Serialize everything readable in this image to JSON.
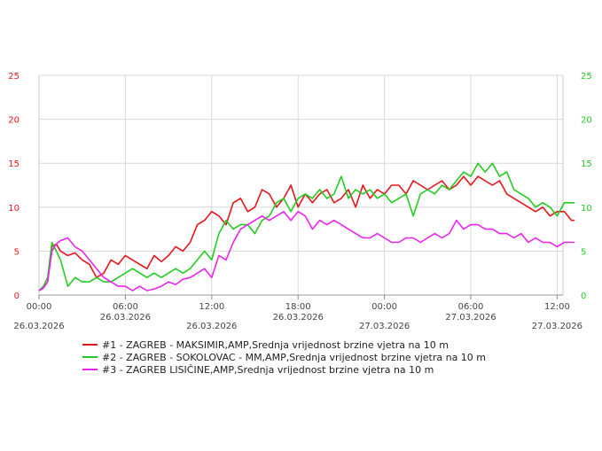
{
  "chart_data": {
    "type": "line",
    "title": "",
    "xlabel": "",
    "ylabel": "",
    "ylim": [
      0,
      25
    ],
    "y_ticks": [
      0,
      5,
      10,
      15,
      20,
      25
    ],
    "left_axis_color": "#e8141c",
    "right_axis_color": "#22cc22",
    "grid": true,
    "legend_position": "bottom-left",
    "x_ticks": [
      {
        "hours": 0,
        "time": "00:00",
        "date": "26.03.2026"
      },
      {
        "hours": 6,
        "time": "06:00",
        "date": "26.03.2026"
      },
      {
        "hours": 12,
        "time": "12:00",
        "date": "26.03.2026"
      },
      {
        "hours": 18,
        "time": "18:00",
        "date": "26.03.2026"
      },
      {
        "hours": 24,
        "time": "00:00",
        "date": "27.03.2026"
      },
      {
        "hours": 30,
        "time": "06:00",
        "date": "27.03.2026"
      },
      {
        "hours": 36,
        "time": "12:00",
        "date": "27.03.2026"
      }
    ],
    "x_range_hours": [
      0,
      37.3
    ],
    "series": [
      {
        "name": "#1 - ZAGREB - MAKSIMIR,AMP,Srednja vrijednost brzine vjetra na 10 m",
        "color": "#e8141c",
        "x": [
          0,
          0.3,
          0.6,
          0.9,
          1.2,
          1.5,
          2,
          2.5,
          3,
          3.5,
          4,
          4.5,
          5,
          5.5,
          6,
          6.5,
          7,
          7.5,
          8,
          8.5,
          9,
          9.5,
          10,
          10.5,
          11,
          11.5,
          12,
          12.5,
          13,
          13.5,
          14,
          14.5,
          15,
          15.5,
          16,
          16.5,
          17,
          17.5,
          18,
          18.5,
          19,
          19.5,
          20,
          20.5,
          21,
          21.5,
          22,
          22.5,
          23,
          23.5,
          24,
          24.5,
          25,
          25.5,
          26,
          26.5,
          27,
          27.5,
          28,
          28.5,
          29,
          29.5,
          30,
          30.5,
          31,
          31.5,
          32,
          32.5,
          33,
          33.5,
          34,
          34.5,
          35,
          35.5,
          36,
          36.5,
          37,
          37.2
        ],
        "values": [
          0.5,
          0.8,
          1.5,
          5.5,
          5.8,
          5.0,
          4.5,
          4.8,
          4.0,
          3.5,
          2.0,
          2.5,
          4.0,
          3.5,
          4.5,
          4.0,
          3.5,
          3.0,
          4.5,
          3.8,
          4.5,
          5.5,
          5.0,
          6.0,
          8.0,
          8.5,
          9.5,
          9.0,
          8.0,
          10.5,
          11.0,
          9.5,
          10.0,
          12.0,
          11.5,
          10.0,
          11.0,
          12.5,
          10.0,
          11.5,
          10.5,
          11.5,
          12.0,
          10.5,
          11.0,
          12.0,
          10.0,
          12.5,
          11.0,
          12.0,
          11.5,
          12.5,
          12.5,
          11.5,
          13.0,
          12.5,
          12.0,
          12.5,
          13.0,
          12.0,
          12.5,
          13.5,
          12.5,
          13.5,
          13.0,
          12.5,
          13.0,
          11.5,
          11.0,
          10.5,
          10.0,
          9.5,
          10.0,
          9.0,
          9.5,
          9.5,
          8.5,
          8.5
        ]
      },
      {
        "name": "#2 - ZAGREB - SOKOLOVAC - MM,AMP,Srednja vrijednost brzine vjetra na 10 m",
        "color": "#22cc22",
        "x": [
          0,
          0.3,
          0.6,
          0.9,
          1.2,
          1.5,
          2,
          2.5,
          3,
          3.5,
          4,
          4.5,
          5,
          5.5,
          6,
          6.5,
          7,
          7.5,
          8,
          8.5,
          9,
          9.5,
          10,
          10.5,
          11,
          11.5,
          12,
          12.5,
          13,
          13.5,
          14,
          14.5,
          15,
          15.5,
          16,
          16.5,
          17,
          17.5,
          18,
          18.5,
          19,
          19.5,
          20,
          20.5,
          21,
          21.5,
          22,
          22.5,
          23,
          23.5,
          24,
          24.5,
          25,
          25.5,
          26,
          26.5,
          27,
          27.5,
          28,
          28.5,
          29,
          29.5,
          30,
          30.5,
          31,
          31.5,
          32,
          32.5,
          33,
          33.5,
          34,
          34.5,
          35,
          35.5,
          36,
          36.5,
          37,
          37.2
        ],
        "values": [
          0.5,
          1.0,
          2.0,
          6.0,
          5.0,
          4.0,
          1.0,
          2.0,
          1.5,
          1.5,
          2.0,
          1.5,
          1.5,
          2.0,
          2.5,
          3.0,
          2.5,
          2.0,
          2.5,
          2.0,
          2.5,
          3.0,
          2.5,
          3.0,
          4.0,
          5.0,
          4.0,
          7.0,
          8.5,
          7.5,
          8.0,
          8.0,
          7.0,
          8.5,
          9.0,
          10.5,
          11.0,
          9.5,
          11.0,
          11.5,
          11.0,
          12.0,
          11.0,
          11.5,
          13.5,
          11.0,
          12.0,
          11.5,
          12.0,
          11.0,
          11.5,
          10.5,
          11.0,
          11.5,
          9.0,
          11.5,
          12.0,
          11.5,
          12.5,
          12.0,
          13.0,
          14.0,
          13.5,
          15.0,
          14.0,
          15.0,
          13.5,
          14.0,
          12.0,
          11.5,
          11.0,
          10.0,
          10.5,
          10.0,
          9.0,
          10.5,
          10.5,
          10.5
        ]
      },
      {
        "name": "#3 - ZAGREB LISIČINE,AMP,Srednja vrijednost brzine vjetra na 10 m",
        "color": "#ee22ee",
        "x": [
          0,
          0.3,
          0.6,
          0.9,
          1.2,
          1.5,
          2,
          2.5,
          3,
          3.5,
          4,
          4.5,
          5,
          5.5,
          6,
          6.5,
          7,
          7.5,
          8,
          8.5,
          9,
          9.5,
          10,
          10.5,
          11,
          11.5,
          12,
          12.5,
          13,
          13.5,
          14,
          14.5,
          15,
          15.5,
          16,
          16.5,
          17,
          17.5,
          18,
          18.5,
          19,
          19.5,
          20,
          20.5,
          21,
          21.5,
          22,
          22.5,
          23,
          23.5,
          24,
          24.5,
          25,
          25.5,
          26,
          26.5,
          27,
          27.5,
          28,
          28.5,
          29,
          29.5,
          30,
          30.5,
          31,
          31.5,
          32,
          32.5,
          33,
          33.5,
          34,
          34.5,
          35,
          35.5,
          36,
          36.5,
          37,
          37.2
        ],
        "values": [
          0.5,
          0.8,
          1.5,
          5.0,
          5.8,
          6.2,
          6.5,
          5.5,
          5.0,
          4.0,
          3.0,
          2.0,
          1.5,
          1.0,
          1.0,
          0.5,
          1.0,
          0.5,
          0.7,
          1.0,
          1.5,
          1.2,
          1.8,
          2.0,
          2.5,
          3.0,
          2.0,
          4.5,
          4.0,
          6.0,
          7.5,
          8.0,
          8.5,
          9.0,
          8.5,
          9.0,
          9.5,
          8.5,
          9.5,
          9.0,
          7.5,
          8.5,
          8.0,
          8.5,
          8.0,
          7.5,
          7.0,
          6.5,
          6.5,
          7.0,
          6.5,
          6.0,
          6.0,
          6.5,
          6.5,
          6.0,
          6.5,
          7.0,
          6.5,
          7.0,
          8.5,
          7.5,
          8.0,
          8.0,
          7.5,
          7.5,
          7.0,
          7.0,
          6.5,
          7.0,
          6.0,
          6.5,
          6.0,
          6.0,
          5.5,
          6.0,
          6.0,
          6.0
        ]
      }
    ]
  }
}
